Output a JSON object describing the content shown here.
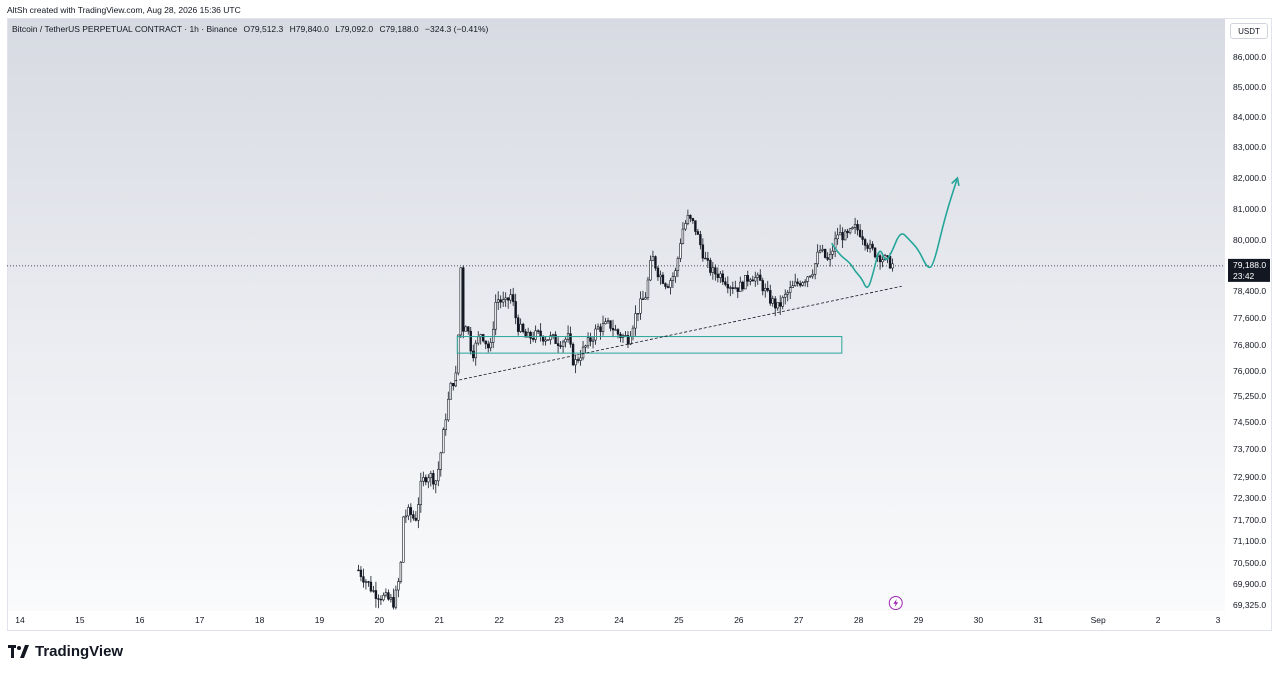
{
  "header": {
    "attribution": "AltSh created with TradingView.com, Aug 28, 2026 15:36 UTC"
  },
  "legend": {
    "symbol": "Bitcoin / TetherUS PERPETUAL CONTRACT · 1h · Binance",
    "open": "O79,512.3",
    "high": "H79,840.0",
    "low": "L79,092.0",
    "close": "C79,188.0",
    "change": "−324.3 (−0.41%)"
  },
  "currency_badge": "USDT",
  "price_tag": {
    "price": "79,188.0",
    "countdown": "23:42"
  },
  "brand": {
    "name": "TradingView"
  },
  "colors": {
    "up": "#131722",
    "down": "#131722",
    "accent": "#26a69a",
    "bolt": "#9c27b0"
  },
  "chart_data": {
    "type": "candlestick",
    "title": "Bitcoin / TetherUS PERPETUAL CONTRACT · 1h · Binance",
    "x_ticks": [
      "14",
      "15",
      "16",
      "17",
      "18",
      "19",
      "20",
      "21",
      "22",
      "23",
      "24",
      "25",
      "26",
      "27",
      "28",
      "29",
      "30",
      "31",
      "Sep",
      "2",
      "3"
    ],
    "y_ticks": [
      86000,
      85000,
      84000,
      83000,
      82000,
      81000,
      80000,
      78400,
      77600,
      76800,
      76000,
      75250,
      74500,
      73700,
      72900,
      72300,
      71700,
      71100,
      70500,
      69900,
      69325
    ],
    "y_tick_labels": [
      "86,000.0",
      "85,000.0",
      "84,000.0",
      "83,000.0",
      "82,000.0",
      "81,000.0",
      "80,000.0",
      "78,400.0",
      "77,600.0",
      "76,800.0",
      "76,000.0",
      "75,250.0",
      "74,500.0",
      "73,700.0",
      "72,900.0",
      "72,300.0",
      "71,700.0",
      "71,100.0",
      "70,500.0",
      "69,900.0",
      "69,325.0"
    ],
    "last_price": 79188,
    "price_path": [
      [
        19.65,
        70300
      ],
      [
        19.9,
        69700
      ],
      [
        20.1,
        69500
      ],
      [
        20.25,
        69400
      ],
      [
        20.35,
        70200
      ],
      [
        20.4,
        71800
      ],
      [
        20.5,
        71900
      ],
      [
        20.6,
        71700
      ],
      [
        20.7,
        72700
      ],
      [
        20.8,
        73000
      ],
      [
        20.95,
        72800
      ],
      [
        21.0,
        73300
      ],
      [
        21.05,
        73900
      ],
      [
        21.1,
        74600
      ],
      [
        21.15,
        75100
      ],
      [
        21.2,
        75600
      ],
      [
        21.3,
        75900
      ],
      [
        21.35,
        79500
      ],
      [
        21.4,
        77300
      ],
      [
        21.45,
        77500
      ],
      [
        21.55,
        76500
      ],
      [
        21.7,
        77200
      ],
      [
        21.85,
        76600
      ],
      [
        21.95,
        78200
      ],
      [
        22.1,
        78000
      ],
      [
        22.2,
        78300
      ],
      [
        22.3,
        77400
      ],
      [
        22.45,
        77000
      ],
      [
        22.65,
        77100
      ],
      [
        22.85,
        77000
      ],
      [
        23.0,
        76900
      ],
      [
        23.15,
        77000
      ],
      [
        23.25,
        76200
      ],
      [
        23.35,
        76500
      ],
      [
        23.5,
        76900
      ],
      [
        23.65,
        77300
      ],
      [
        23.85,
        77400
      ],
      [
        24.0,
        77100
      ],
      [
        24.15,
        77000
      ],
      [
        24.3,
        77800
      ],
      [
        24.45,
        78300
      ],
      [
        24.55,
        79500
      ],
      [
        24.65,
        79000
      ],
      [
        24.8,
        78600
      ],
      [
        24.95,
        79000
      ],
      [
        25.05,
        80300
      ],
      [
        25.15,
        80700
      ],
      [
        25.25,
        80500
      ],
      [
        25.35,
        79900
      ],
      [
        25.45,
        79300
      ],
      [
        25.55,
        79000
      ],
      [
        25.7,
        78900
      ],
      [
        25.85,
        78600
      ],
      [
        26.0,
        78500
      ],
      [
        26.2,
        78900
      ],
      [
        26.35,
        78700
      ],
      [
        26.5,
        78200
      ],
      [
        26.65,
        77900
      ],
      [
        26.8,
        78300
      ],
      [
        26.95,
        78600
      ],
      [
        27.1,
        78800
      ],
      [
        27.25,
        79100
      ],
      [
        27.35,
        79700
      ],
      [
        27.5,
        79300
      ],
      [
        27.65,
        80200
      ],
      [
        27.8,
        80100
      ],
      [
        27.95,
        80400
      ],
      [
        28.05,
        80200
      ],
      [
        28.2,
        79700
      ],
      [
        28.35,
        79500
      ],
      [
        28.5,
        79300
      ],
      [
        28.6,
        79188
      ]
    ],
    "support_trendline": [
      [
        21.25,
        75700
      ],
      [
        28.72,
        78550
      ]
    ],
    "demand_zone": {
      "x0": 21.3,
      "x1": 27.72,
      "y0": 76550,
      "y1": 77050
    },
    "projection_path": [
      [
        27.55,
        79900
      ],
      [
        27.7,
        79500
      ],
      [
        27.85,
        79300
      ],
      [
        27.95,
        79000
      ],
      [
        28.05,
        78800
      ],
      [
        28.15,
        78400
      ],
      [
        28.25,
        79000
      ],
      [
        28.35,
        79800
      ],
      [
        28.45,
        79300
      ],
      [
        28.55,
        79600
      ],
      [
        28.7,
        80300
      ],
      [
        28.85,
        80000
      ],
      [
        29.0,
        79700
      ],
      [
        29.15,
        79100
      ],
      [
        29.25,
        79200
      ],
      [
        29.45,
        80800
      ],
      [
        29.65,
        82000
      ]
    ]
  }
}
